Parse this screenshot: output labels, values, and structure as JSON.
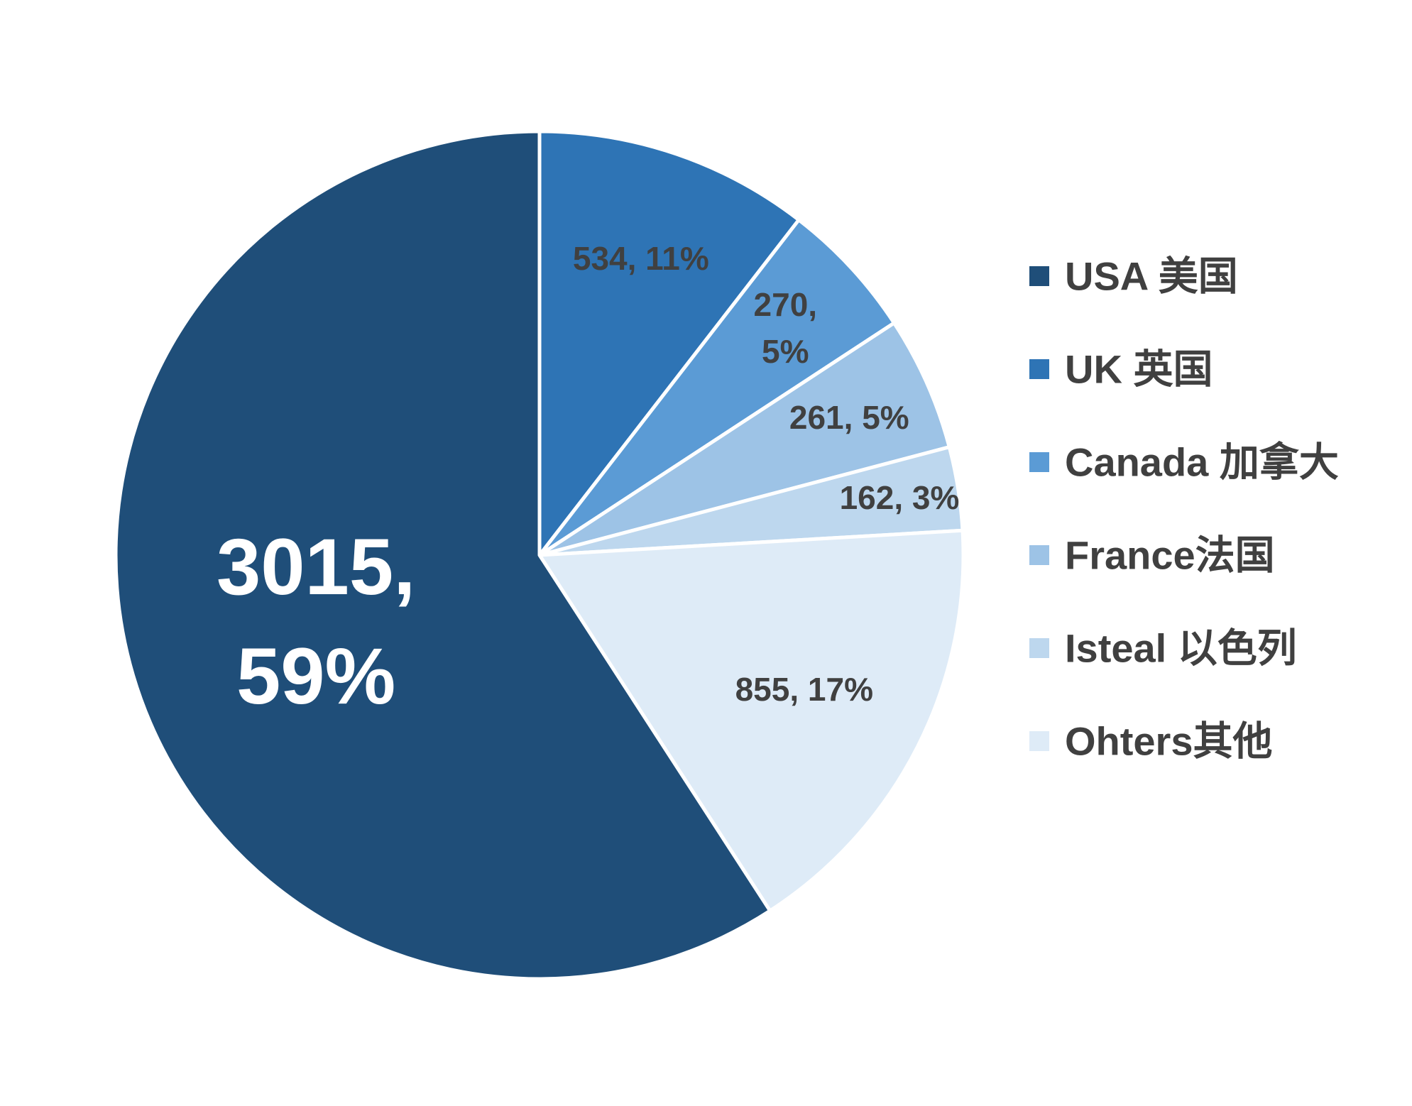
{
  "chart_data": {
    "type": "pie",
    "title": "",
    "start_angle_deg": 0,
    "direction": "clockwise",
    "legend_position": "right",
    "slices": [
      {
        "name": "UK 英国",
        "value": 534,
        "percent": "11%",
        "label": [
          "534, 11%"
        ],
        "color": "#2E74B5",
        "label_color": "#404040"
      },
      {
        "name": "Canada 加拿大",
        "value": 270,
        "percent": "5%",
        "label": [
          "270,",
          "5%"
        ],
        "color": "#5B9BD5",
        "label_color": "#404040"
      },
      {
        "name": "France法国",
        "value": 261,
        "percent": "5%",
        "label": [
          "261, 5%"
        ],
        "color": "#9DC3E6",
        "label_color": "#404040"
      },
      {
        "name": "Isteal 以色列",
        "value": 162,
        "percent": "3%",
        "label": [
          "162, 3%"
        ],
        "color": "#BDD7EE",
        "label_color": "#404040"
      },
      {
        "name": "Ohters其他",
        "value": 855,
        "percent": "17%",
        "label": [
          "855, 17%"
        ],
        "color": "#DEEBF7",
        "label_color": "#404040"
      },
      {
        "name": "USA 美国",
        "value": 3015,
        "percent": "59%",
        "label": [
          "3015,",
          "59%"
        ],
        "color": "#1F4E79",
        "label_color": "#FFFFFF"
      }
    ],
    "legend_order": [
      "USA 美国",
      "UK 英国",
      "Canada 加拿大",
      "France法国",
      "Isteal 以色列",
      "Ohters其他"
    ]
  }
}
